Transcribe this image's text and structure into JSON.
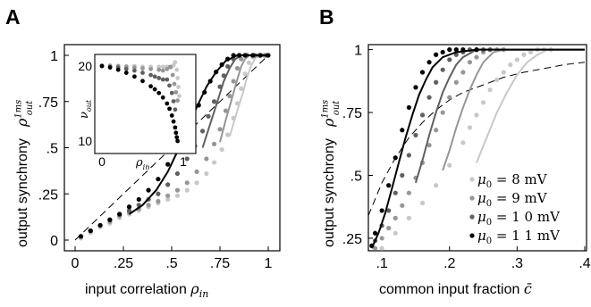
{
  "chart_data": [
    {
      "panel": "A",
      "type": "line",
      "xlabel": "input correlation",
      "xlabel_sym": "ρ",
      "xlabel_sub": "in",
      "ylabel": "output synchrony",
      "ylabel_sym": "ρ",
      "ylabel_sup": "1ms",
      "ylabel_sub": "out",
      "xlim": [
        0,
        1
      ],
      "ylim": [
        0,
        1
      ],
      "xticks": [
        0,
        0.25,
        0.5,
        0.75,
        1
      ],
      "xtick_labels": [
        "0",
        ".25",
        ".5",
        ".75",
        "1"
      ],
      "yticks": [
        0,
        0.25,
        0.5,
        0.75,
        1
      ],
      "ytick_labels": [
        "0",
        ".25",
        ".5",
        ".75",
        "1"
      ],
      "reference_line": {
        "style": "dashed",
        "x": [
          0,
          1
        ],
        "y": [
          0,
          1
        ]
      },
      "series": [
        {
          "color": "#c8c8c8",
          "points": {
            "x": [
              0.03,
              0.08,
              0.13,
              0.18,
              0.23,
              0.28,
              0.33,
              0.38,
              0.43,
              0.48,
              0.53,
              0.58,
              0.63,
              0.68,
              0.72,
              0.76,
              0.79,
              0.82,
              0.84,
              0.86,
              0.88,
              0.9,
              0.92,
              0.95,
              0.98
            ],
            "y": [
              0.01,
              0.04,
              0.07,
              0.09,
              0.12,
              0.14,
              0.16,
              0.18,
              0.2,
              0.22,
              0.24,
              0.27,
              0.31,
              0.36,
              0.42,
              0.49,
              0.57,
              0.66,
              0.74,
              0.82,
              0.9,
              0.96,
              0.99,
              1.0,
              1.0
            ]
          },
          "curve": {
            "x": [
              0.8,
              0.84,
              0.87,
              0.89,
              0.91,
              0.93,
              0.95,
              1.0
            ],
            "y": [
              0.56,
              0.7,
              0.8,
              0.88,
              0.94,
              0.98,
              1.0,
              1.0
            ]
          }
        },
        {
          "color": "#969696",
          "points": {
            "x": [
              0.03,
              0.08,
              0.13,
              0.18,
              0.23,
              0.28,
              0.33,
              0.38,
              0.43,
              0.48,
              0.53,
              0.58,
              0.63,
              0.68,
              0.72,
              0.75,
              0.78,
              0.8,
              0.82,
              0.84,
              0.86,
              0.89,
              0.92,
              0.95,
              0.98
            ],
            "y": [
              0.02,
              0.05,
              0.08,
              0.1,
              0.13,
              0.15,
              0.17,
              0.19,
              0.21,
              0.24,
              0.27,
              0.31,
              0.37,
              0.44,
              0.52,
              0.6,
              0.7,
              0.78,
              0.86,
              0.93,
              0.98,
              1.0,
              1.0,
              1.0,
              1.0
            ]
          },
          "curve": {
            "x": [
              0.75,
              0.78,
              0.81,
              0.84,
              0.86,
              0.88,
              0.9,
              1.0
            ],
            "y": [
              0.53,
              0.65,
              0.76,
              0.87,
              0.94,
              0.98,
              1.0,
              1.0
            ]
          }
        },
        {
          "color": "#606060",
          "points": {
            "x": [
              0.03,
              0.08,
              0.13,
              0.18,
              0.23,
              0.28,
              0.33,
              0.38,
              0.43,
              0.48,
              0.53,
              0.58,
              0.62,
              0.66,
              0.69,
              0.72,
              0.75,
              0.77,
              0.79,
              0.82,
              0.85,
              0.89,
              0.93,
              0.96,
              0.99
            ],
            "y": [
              0.02,
              0.05,
              0.08,
              0.11,
              0.14,
              0.16,
              0.19,
              0.22,
              0.25,
              0.3,
              0.36,
              0.44,
              0.51,
              0.59,
              0.67,
              0.75,
              0.83,
              0.89,
              0.94,
              0.98,
              1.0,
              1.0,
              1.0,
              1.0,
              1.0
            ]
          },
          "curve": {
            "x": [
              0.66,
              0.7,
              0.74,
              0.77,
              0.8,
              0.83,
              0.86,
              1.0
            ],
            "y": [
              0.5,
              0.63,
              0.76,
              0.86,
              0.93,
              0.98,
              1.0,
              1.0
            ]
          }
        },
        {
          "color": "#000000",
          "points": {
            "x": [
              0.03,
              0.08,
              0.13,
              0.18,
              0.23,
              0.28,
              0.33,
              0.38,
              0.43,
              0.48,
              0.52,
              0.56,
              0.6,
              0.64,
              0.67,
              0.7,
              0.73,
              0.76,
              0.79,
              0.82,
              0.85,
              0.88,
              0.92,
              0.96,
              1.0
            ],
            "y": [
              0.02,
              0.05,
              0.08,
              0.11,
              0.14,
              0.18,
              0.22,
              0.27,
              0.33,
              0.41,
              0.49,
              0.57,
              0.65,
              0.73,
              0.8,
              0.86,
              0.91,
              0.95,
              0.98,
              1.0,
              1.0,
              1.0,
              1.0,
              1.0,
              1.0
            ]
          },
          "curve": {
            "x": [
              0.28,
              0.35,
              0.42,
              0.48,
              0.53,
              0.58,
              0.63,
              0.68,
              0.73,
              0.78,
              0.84,
              0.9,
              1.0
            ],
            "y": [
              0.14,
              0.19,
              0.27,
              0.37,
              0.48,
              0.6,
              0.72,
              0.83,
              0.91,
              0.97,
              1.0,
              1.0,
              1.0
            ]
          }
        }
      ],
      "inset": {
        "xlabel_sym": "ρ",
        "xlabel_sub": "in",
        "ylabel_sym": "ν",
        "ylabel_sub": "out",
        "xlim": [
          0,
          1
        ],
        "ylim": [
          9,
          21
        ],
        "xtick_labels": [
          "0",
          "1"
        ],
        "ytick_labels": [
          "10",
          "20"
        ],
        "series": [
          {
            "color": "#c8c8c8",
            "x": [
              0.0,
              0.1,
              0.2,
              0.3,
              0.4,
              0.5,
              0.6,
              0.7,
              0.75,
              0.8,
              0.85,
              0.88,
              0.9,
              0.92,
              0.93,
              0.94,
              0.95
            ],
            "y": [
              20.1,
              20.1,
              20.0,
              20.0,
              20.0,
              19.9,
              19.9,
              19.9,
              19.9,
              19.9,
              19.8,
              20.1,
              20.5,
              19.5,
              18.4,
              17.2,
              16.0
            ]
          },
          {
            "color": "#969696",
            "x": [
              0.0,
              0.1,
              0.2,
              0.3,
              0.4,
              0.5,
              0.6,
              0.7,
              0.75,
              0.8,
              0.84,
              0.87,
              0.89,
              0.91,
              0.93
            ],
            "y": [
              20.0,
              20.0,
              20.0,
              19.9,
              19.8,
              19.7,
              19.6,
              19.5,
              19.4,
              19.6,
              19.9,
              18.8,
              17.6,
              16.5,
              15.4
            ]
          },
          {
            "color": "#606060",
            "x": [
              0.0,
              0.1,
              0.2,
              0.3,
              0.4,
              0.5,
              0.6,
              0.65,
              0.7,
              0.75,
              0.8,
              0.83,
              0.86,
              0.88,
              0.9
            ],
            "y": [
              20.0,
              19.9,
              19.8,
              19.6,
              19.4,
              19.1,
              18.8,
              18.6,
              18.4,
              18.2,
              18.2,
              17.4,
              16.4,
              15.3,
              14.2
            ]
          },
          {
            "color": "#000000",
            "x": [
              0.0,
              0.1,
              0.2,
              0.3,
              0.4,
              0.5,
              0.6,
              0.65,
              0.7,
              0.75,
              0.8,
              0.83,
              0.86,
              0.88,
              0.9,
              0.91,
              0.92,
              0.93
            ],
            "y": [
              20.0,
              19.8,
              19.5,
              19.1,
              18.6,
              18.0,
              17.3,
              16.9,
              16.4,
              15.8,
              15.0,
              14.3,
              13.4,
              12.6,
              11.8,
              11.1,
              10.5,
              10.0
            ]
          }
        ]
      }
    },
    {
      "panel": "B",
      "type": "line",
      "xlabel": "common input fraction",
      "xlabel_sym": "c̄",
      "ylabel": "output synchrony",
      "ylabel_sym": "ρ",
      "ylabel_sup": "1ms",
      "ylabel_sub": "out",
      "xlim": [
        0.08,
        0.4
      ],
      "ylim": [
        0.2,
        1.02
      ],
      "xticks": [
        0.1,
        0.2,
        0.3,
        0.4
      ],
      "xtick_labels": [
        ".1",
        ".2",
        ".3",
        ".4"
      ],
      "yticks": [
        0.25,
        0.5,
        0.75,
        1
      ],
      "ytick_labels": [
        ".25",
        ".5",
        ".75",
        "1"
      ],
      "reference_line": {
        "style": "dashed",
        "x": [
          0.08,
          0.1,
          0.12,
          0.14,
          0.16,
          0.18,
          0.2,
          0.22,
          0.25,
          0.28,
          0.31,
          0.34,
          0.37,
          0.4
        ],
        "y": [
          0.34,
          0.47,
          0.57,
          0.65,
          0.71,
          0.76,
          0.8,
          0.83,
          0.86,
          0.89,
          0.91,
          0.925,
          0.94,
          0.95
        ]
      },
      "legend": {
        "position": "lower-right",
        "entries": [
          {
            "mu": "μ",
            "sub": "0",
            "text": " = 8  mV",
            "color": "#c8c8c8"
          },
          {
            "mu": "μ",
            "sub": "0",
            "text": " = 9  mV",
            "color": "#969696"
          },
          {
            "mu": "μ",
            "sub": "0",
            "text": " = 1 0  mV",
            "color": "#606060"
          },
          {
            "mu": "μ",
            "sub": "0",
            "text": " = 1 1  mV",
            "color": "#000000"
          }
        ]
      },
      "series": [
        {
          "color": "#c8c8c8",
          "points": {
            "x": [
              0.1,
              0.12,
              0.14,
              0.16,
              0.18,
              0.2,
              0.22,
              0.23,
              0.24,
              0.25,
              0.26,
              0.27,
              0.28,
              0.29,
              0.3,
              0.31,
              0.32,
              0.33,
              0.34,
              0.35
            ],
            "y": [
              0.21,
              0.27,
              0.33,
              0.39,
              0.46,
              0.54,
              0.63,
              0.69,
              0.74,
              0.79,
              0.84,
              0.88,
              0.91,
              0.94,
              0.96,
              0.98,
              0.99,
              1.0,
              1.0,
              1.0
            ]
          },
          "curve": {
            "x": [
              0.24,
              0.255,
              0.27,
              0.285,
              0.3,
              0.315,
              0.33,
              0.345,
              0.4
            ],
            "y": [
              0.55,
              0.65,
              0.75,
              0.83,
              0.9,
              0.95,
              0.98,
              1.0,
              1.0
            ]
          }
        },
        {
          "color": "#969696",
          "points": {
            "x": [
              0.09,
              0.1,
              0.11,
              0.12,
              0.13,
              0.14,
              0.15,
              0.16,
              0.17,
              0.18,
              0.19,
              0.2,
              0.21,
              0.22,
              0.23,
              0.24,
              0.25,
              0.26,
              0.27,
              0.28
            ],
            "y": [
              0.21,
              0.25,
              0.29,
              0.33,
              0.38,
              0.43,
              0.49,
              0.55,
              0.62,
              0.68,
              0.75,
              0.81,
              0.87,
              0.91,
              0.95,
              0.97,
              0.99,
              1.0,
              1.0,
              1.0
            ]
          },
          "curve": {
            "x": [
              0.19,
              0.2,
              0.21,
              0.22,
              0.23,
              0.24,
              0.25,
              0.265,
              0.28,
              0.4
            ],
            "y": [
              0.52,
              0.6,
              0.69,
              0.77,
              0.84,
              0.9,
              0.95,
              0.99,
              1.0,
              1.0
            ]
          }
        },
        {
          "color": "#606060",
          "points": {
            "x": [
              0.09,
              0.1,
              0.11,
              0.12,
              0.13,
              0.14,
              0.15,
              0.16,
              0.17,
              0.18,
              0.19,
              0.2,
              0.21,
              0.22,
              0.23,
              0.24,
              0.25,
              0.26
            ],
            "y": [
              0.24,
              0.3,
              0.36,
              0.43,
              0.5,
              0.58,
              0.66,
              0.74,
              0.81,
              0.87,
              0.92,
              0.96,
              0.98,
              0.99,
              1.0,
              1.0,
              1.0,
              1.0
            ]
          },
          "curve": {
            "x": [
              0.15,
              0.16,
              0.17,
              0.18,
              0.19,
              0.2,
              0.21,
              0.22,
              0.24,
              0.4
            ],
            "y": [
              0.47,
              0.56,
              0.66,
              0.75,
              0.83,
              0.89,
              0.94,
              0.97,
              1.0,
              1.0
            ]
          }
        },
        {
          "color": "#000000",
          "points": {
            "x": [
              0.085,
              0.09,
              0.1,
              0.11,
              0.12,
              0.13,
              0.14,
              0.15,
              0.16,
              0.17,
              0.18,
              0.19,
              0.2,
              0.21,
              0.22,
              0.24
            ],
            "y": [
              0.22,
              0.27,
              0.36,
              0.46,
              0.57,
              0.68,
              0.77,
              0.85,
              0.91,
              0.95,
              0.98,
              0.99,
              1.0,
              1.0,
              1.0,
              1.0
            ]
          },
          "curve": {
            "x": [
              0.085,
              0.095,
              0.105,
              0.115,
              0.125,
              0.135,
              0.145,
              0.155,
              0.165,
              0.175,
              0.19,
              0.21,
              0.24,
              0.4
            ],
            "y": [
              0.21,
              0.27,
              0.35,
              0.45,
              0.55,
              0.65,
              0.74,
              0.82,
              0.88,
              0.93,
              0.97,
              0.99,
              1.0,
              1.0
            ]
          }
        }
      ]
    }
  ]
}
